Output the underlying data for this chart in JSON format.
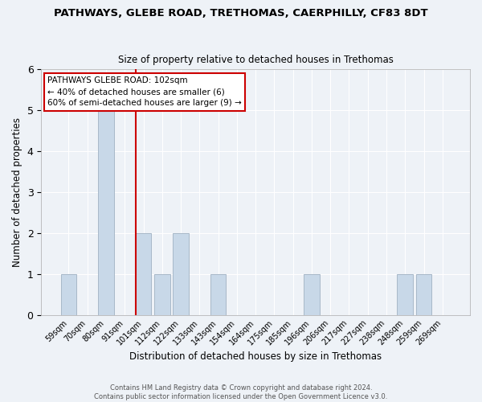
{
  "title": "PATHWAYS, GLEBE ROAD, TRETHOMAS, CAERPHILLY, CF83 8DT",
  "subtitle": "Size of property relative to detached houses in Trethomas",
  "xlabel": "Distribution of detached houses by size in Trethomas",
  "ylabel": "Number of detached properties",
  "bar_labels": [
    "59sqm",
    "70sqm",
    "80sqm",
    "91sqm",
    "101sqm",
    "112sqm",
    "122sqm",
    "133sqm",
    "143sqm",
    "154sqm",
    "164sqm",
    "175sqm",
    "185sqm",
    "196sqm",
    "206sqm",
    "217sqm",
    "227sqm",
    "238sqm",
    "248sqm",
    "259sqm",
    "269sqm"
  ],
  "bar_values": [
    1,
    0,
    5,
    0,
    2,
    1,
    2,
    0,
    1,
    0,
    0,
    0,
    0,
    1,
    0,
    0,
    0,
    0,
    1,
    1,
    0
  ],
  "bar_color": "#c8d8e8",
  "bar_edgecolor": "#a8b8c8",
  "vline_color": "#cc0000",
  "vline_x_index": 4,
  "ylim": [
    0,
    6
  ],
  "yticks": [
    0,
    1,
    2,
    3,
    4,
    5,
    6
  ],
  "annotation_text": "PATHWAYS GLEBE ROAD: 102sqm\n← 40% of detached houses are smaller (6)\n60% of semi-detached houses are larger (9) →",
  "annotation_box_color": "#ffffff",
  "annotation_box_edgecolor": "#cc0000",
  "footer_line1": "Contains HM Land Registry data © Crown copyright and database right 2024.",
  "footer_line2": "Contains public sector information licensed under the Open Government Licence v3.0.",
  "background_color": "#eef2f7",
  "grid_color": "#ffffff",
  "figsize": [
    6.0,
    5.0
  ],
  "dpi": 100
}
